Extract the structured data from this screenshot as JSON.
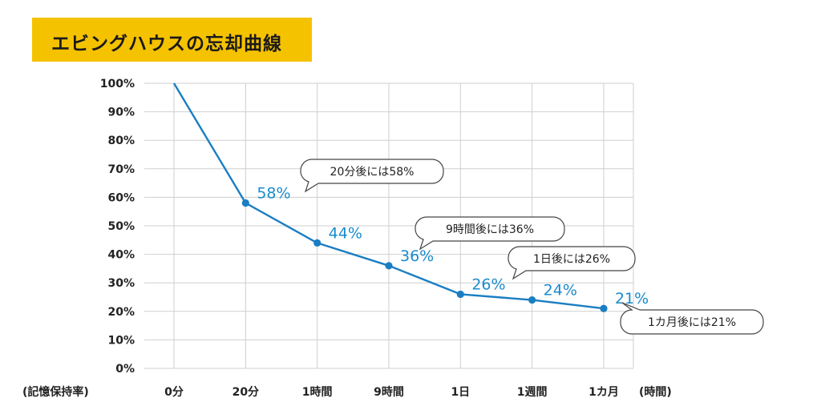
{
  "title": "エビングハウスの忘却曲線",
  "chart_data": {
    "type": "line",
    "title": "エビングハウスの忘却曲線",
    "xlabel": "(時間)",
    "ylabel": "(記憶保持率)",
    "categories": [
      "0分",
      "20分",
      "1時間",
      "9時間",
      "1日",
      "1週間",
      "1カ月"
    ],
    "values": [
      100,
      58,
      44,
      36,
      26,
      24,
      21
    ],
    "data_labels": [
      "",
      "58%",
      "44%",
      "36%",
      "26%",
      "24%",
      "21%"
    ],
    "y_ticks": [
      "100%",
      "90%",
      "80%",
      "70%",
      "60%",
      "50%",
      "40%",
      "30%",
      "20%",
      "10%",
      "0%"
    ],
    "ylim": [
      0,
      100
    ],
    "grid": true,
    "colors": {
      "line": "#1A7EC2",
      "label": "#1A8BCC",
      "title_bg": "#F5C200",
      "grid": "#cfcfcf"
    },
    "annotations": [
      {
        "text": "20分後には58%",
        "index": 1
      },
      {
        "text": "9時間後には36%",
        "index": 3
      },
      {
        "text": "1日後には26%",
        "index": 4
      },
      {
        "text": "1カ月後には21%",
        "index": 6
      }
    ]
  }
}
